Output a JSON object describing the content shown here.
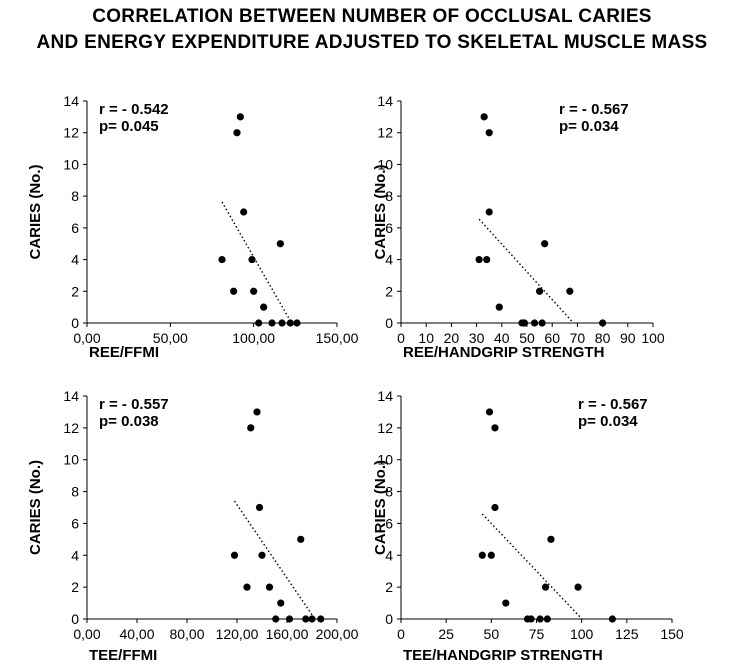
{
  "title_lines": [
    "CORRELATION  BETWEEN NUMBER OF OCCLUSAL CARIES",
    "AND ENERGY EXPENDITURE ADJUSTED TO SKELETAL MUSCLE MASS"
  ],
  "chart_data": [
    {
      "type": "scatter",
      "xlabel": "REE/FFMI",
      "ylabel": "CARIES (No.)",
      "xlim": [
        0,
        150
      ],
      "ylim": [
        0,
        14
      ],
      "xticks": [
        "0,00",
        "50,00",
        "100,00",
        "150,00"
      ],
      "yticks": [
        "0",
        "2",
        "4",
        "6",
        "8",
        "10",
        "12",
        "14"
      ],
      "stat_r": "r = - 0.542",
      "stat_p": "p= 0.045",
      "stats_position": "top-left",
      "grid": false,
      "trendline": "dotted linear",
      "points": [
        {
          "x": 81,
          "y": 4
        },
        {
          "x": 88,
          "y": 2
        },
        {
          "x": 90,
          "y": 12
        },
        {
          "x": 92,
          "y": 13
        },
        {
          "x": 94,
          "y": 7
        },
        {
          "x": 99,
          "y": 4
        },
        {
          "x": 100,
          "y": 2
        },
        {
          "x": 103,
          "y": 0
        },
        {
          "x": 106,
          "y": 1
        },
        {
          "x": 111,
          "y": 0
        },
        {
          "x": 116,
          "y": 5
        },
        {
          "x": 117,
          "y": 0
        },
        {
          "x": 122,
          "y": 0
        },
        {
          "x": 126,
          "y": 0
        }
      ]
    },
    {
      "type": "scatter",
      "xlabel": "REE/HANDGRIP STRENGTH",
      "ylabel": "CARIES (No.)",
      "xlim": [
        0,
        100
      ],
      "ylim": [
        0,
        14
      ],
      "xticks": [
        "0",
        "10",
        "20",
        "30",
        "40",
        "50",
        "60",
        "70",
        "80",
        "90",
        "100"
      ],
      "yticks": [
        "0",
        "2",
        "4",
        "6",
        "8",
        "10",
        "12",
        "14"
      ],
      "stat_r": "r = - 0.567",
      "stat_p": "p= 0.034",
      "stats_position": "top-right",
      "grid": false,
      "trendline": "dotted linear",
      "points": [
        {
          "x": 31,
          "y": 4
        },
        {
          "x": 33,
          "y": 13
        },
        {
          "x": 34,
          "y": 4
        },
        {
          "x": 35,
          "y": 12
        },
        {
          "x": 35,
          "y": 7
        },
        {
          "x": 39,
          "y": 1
        },
        {
          "x": 48,
          "y": 0
        },
        {
          "x": 49,
          "y": 0
        },
        {
          "x": 53,
          "y": 0
        },
        {
          "x": 55,
          "y": 2
        },
        {
          "x": 56,
          "y": 0
        },
        {
          "x": 57,
          "y": 5
        },
        {
          "x": 67,
          "y": 2
        },
        {
          "x": 80,
          "y": 0
        }
      ]
    },
    {
      "type": "scatter",
      "xlabel": "TEE/FFMI",
      "ylabel": "CARIES (No.)",
      "xlim": [
        0,
        200
      ],
      "ylim": [
        0,
        14
      ],
      "xticks": [
        "0,00",
        "40,00",
        "80,00",
        "120,00",
        "160,00",
        "200,00"
      ],
      "yticks": [
        "0",
        "2",
        "4",
        "6",
        "8",
        "10",
        "12",
        "14"
      ],
      "stat_r": "r = - 0.557",
      "stat_p": "p= 0.038",
      "stats_position": "top-left",
      "grid": false,
      "trendline": "dotted linear",
      "points": [
        {
          "x": 118,
          "y": 4
        },
        {
          "x": 128,
          "y": 2
        },
        {
          "x": 131,
          "y": 12
        },
        {
          "x": 136,
          "y": 13
        },
        {
          "x": 138,
          "y": 7
        },
        {
          "x": 140,
          "y": 4
        },
        {
          "x": 146,
          "y": 2
        },
        {
          "x": 151,
          "y": 0
        },
        {
          "x": 155,
          "y": 1
        },
        {
          "x": 162,
          "y": 0
        },
        {
          "x": 171,
          "y": 5
        },
        {
          "x": 175,
          "y": 0
        },
        {
          "x": 180,
          "y": 0
        },
        {
          "x": 187,
          "y": 0
        }
      ]
    },
    {
      "type": "scatter",
      "xlabel": "TEE/HANDGRIP STRENGTH",
      "ylabel": "CARIES (No.)",
      "xlim": [
        0,
        150
      ],
      "ylim": [
        0,
        14
      ],
      "xticks": [
        "0",
        "25",
        "50",
        "75",
        "100",
        "125",
        "150"
      ],
      "yticks": [
        "0",
        "2",
        "4",
        "6",
        "8",
        "10",
        "12",
        "14"
      ],
      "stat_r": "r = - 0.567",
      "stat_p": "p= 0.034",
      "stats_position": "top-right",
      "grid": false,
      "trendline": "dotted linear",
      "points": [
        {
          "x": 45,
          "y": 4
        },
        {
          "x": 49,
          "y": 13
        },
        {
          "x": 50,
          "y": 4
        },
        {
          "x": 52,
          "y": 12
        },
        {
          "x": 52,
          "y": 7
        },
        {
          "x": 58,
          "y": 1
        },
        {
          "x": 70,
          "y": 0
        },
        {
          "x": 72,
          "y": 0
        },
        {
          "x": 77,
          "y": 0
        },
        {
          "x": 80,
          "y": 2
        },
        {
          "x": 81,
          "y": 0
        },
        {
          "x": 83,
          "y": 5
        },
        {
          "x": 98,
          "y": 2
        },
        {
          "x": 117,
          "y": 0
        }
      ]
    }
  ]
}
